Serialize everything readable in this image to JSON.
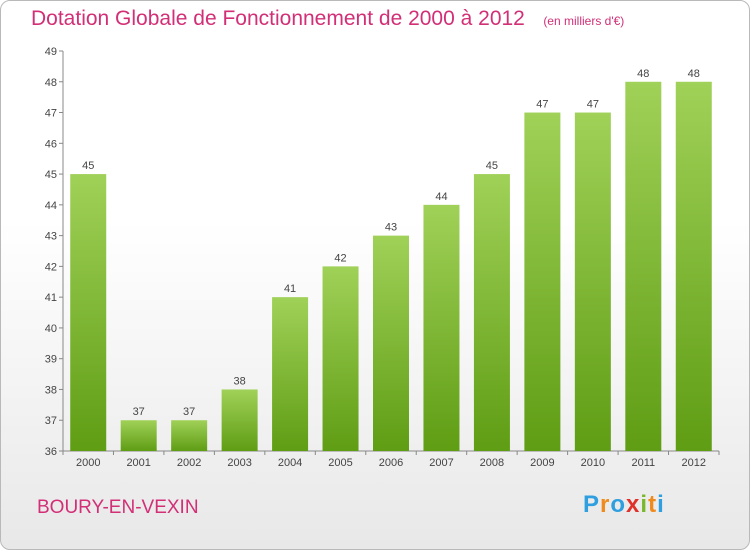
{
  "title": "Dotation Globale de Fonctionnement de 2000 à 2012",
  "unit_note": "(en milliers d'€)",
  "commune": "BOURY-EN-VEXIN",
  "logo": {
    "letters": [
      "P",
      "r",
      "o",
      "x",
      "i",
      "t",
      "i"
    ],
    "colors": [
      "#2f9fe0",
      "#f08a1c",
      "#2f9fe0",
      "#e0302a",
      "#79b82b",
      "#f08a1c",
      "#2f9fe0"
    ]
  },
  "colors": {
    "bar_top": "#a0d158",
    "bar_bottom": "#5f9d14",
    "title": "#d22f77"
  },
  "chart_data": {
    "type": "bar",
    "categories": [
      "2000",
      "2001",
      "2002",
      "2003",
      "2004",
      "2005",
      "2006",
      "2007",
      "2008",
      "2009",
      "2010",
      "2011",
      "2012"
    ],
    "values": [
      45,
      37,
      37,
      38,
      41,
      42,
      43,
      44,
      45,
      47,
      47,
      48,
      48
    ],
    "title": "Dotation Globale de Fonctionnement de 2000 à 2012",
    "ylim": [
      36,
      49
    ],
    "yticks": [
      36,
      37,
      38,
      39,
      40,
      41,
      42,
      43,
      44,
      45,
      46,
      47,
      48,
      49
    ],
    "grid": false
  }
}
